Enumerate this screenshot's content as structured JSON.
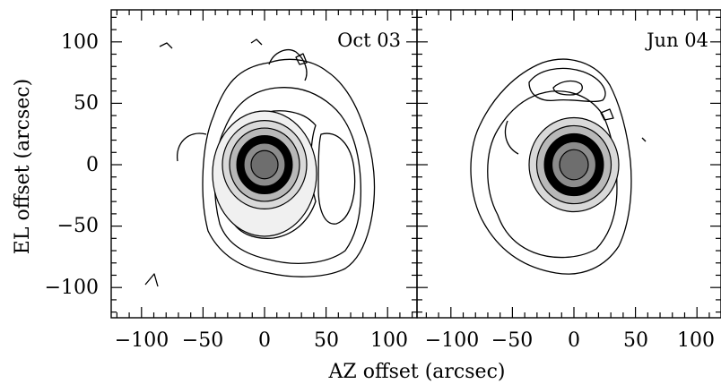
{
  "chart_data": {
    "type": "contour",
    "xlabel": "AZ offset (arcsec)",
    "ylabel": "EL offset (arcsec)",
    "panels": [
      {
        "label": "Oct 03",
        "xlim": [
          -125,
          125
        ],
        "ylim": [
          -125,
          125
        ],
        "xticks": [
          -100,
          -50,
          0,
          50,
          100
        ],
        "xtick_labels": [
          "−100",
          "−50",
          "0",
          "50",
          "100"
        ],
        "source_center": [
          0,
          0
        ],
        "shaded_levels": [
          "#f0f0f0",
          "#d9d9d9",
          "#b8b8b8",
          "#000000",
          "#8c8c8c",
          "#6e6e6e"
        ]
      },
      {
        "label": "Jun 04",
        "xlim": [
          -125,
          125
        ],
        "ylim": [
          -125,
          125
        ],
        "xticks": [
          -100,
          -50,
          0,
          50,
          100
        ],
        "xtick_labels": [
          "−100",
          "−50",
          "0",
          "50",
          "100"
        ],
        "source_center": [
          0,
          0
        ],
        "shaded_levels": [
          "#d9d9d9",
          "#b8b8b8",
          "#000000",
          "#8c8c8c",
          "#6e6e6e"
        ]
      }
    ],
    "yticks": [
      100,
      50,
      0,
      -50,
      -100
    ],
    "ytick_labels": [
      "100",
      "50",
      "0",
      "−50",
      "−100"
    ],
    "grid": false
  }
}
